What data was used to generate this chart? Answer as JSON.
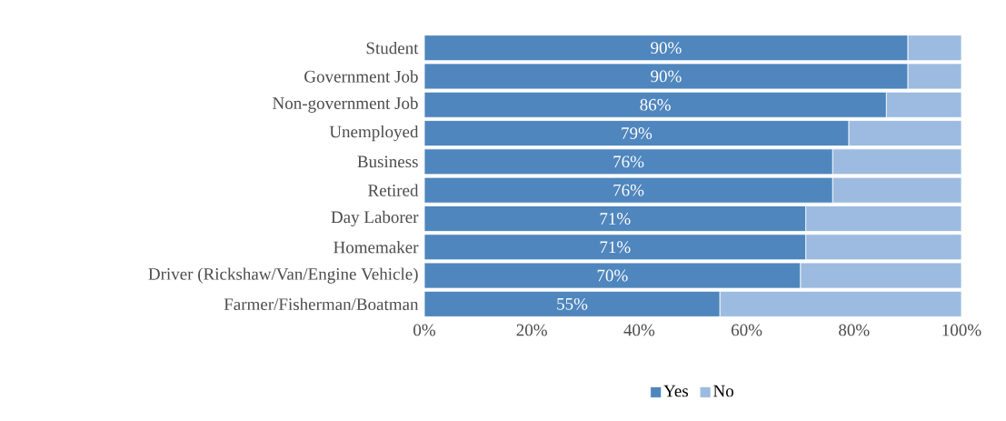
{
  "chart_data": {
    "type": "bar",
    "orientation": "horizontal",
    "stacked": true,
    "categories": [
      "Student",
      "Government Job",
      "Non-government Job",
      "Unemployed",
      "Business",
      "Retired",
      "Day Laborer",
      "Homemaker",
      "Driver (Rickshaw/Van/Engine Vehicle)",
      "Farmer/Fisherman/Boatman"
    ],
    "series": [
      {
        "name": "Yes",
        "color": "#4f86bd",
        "values": [
          90,
          90,
          86,
          79,
          76,
          76,
          71,
          71,
          70,
          55
        ],
        "value_labels": [
          "90%",
          "90%",
          "86%",
          "79%",
          "76%",
          "76%",
          "71%",
          "71%",
          "70%",
          "55%"
        ]
      },
      {
        "name": "No",
        "color": "#9dbbe0",
        "values": [
          10,
          10,
          14,
          21,
          24,
          24,
          29,
          29,
          30,
          45
        ]
      }
    ],
    "xlim": [
      0,
      100
    ],
    "xticks": [
      {
        "value": 0,
        "label": "0%"
      },
      {
        "value": 20,
        "label": "20%"
      },
      {
        "value": 40,
        "label": "40%"
      },
      {
        "value": 60,
        "label": "60%"
      },
      {
        "value": 80,
        "label": "80%"
      },
      {
        "value": 100,
        "label": "100%"
      }
    ],
    "legend": "bottom"
  }
}
